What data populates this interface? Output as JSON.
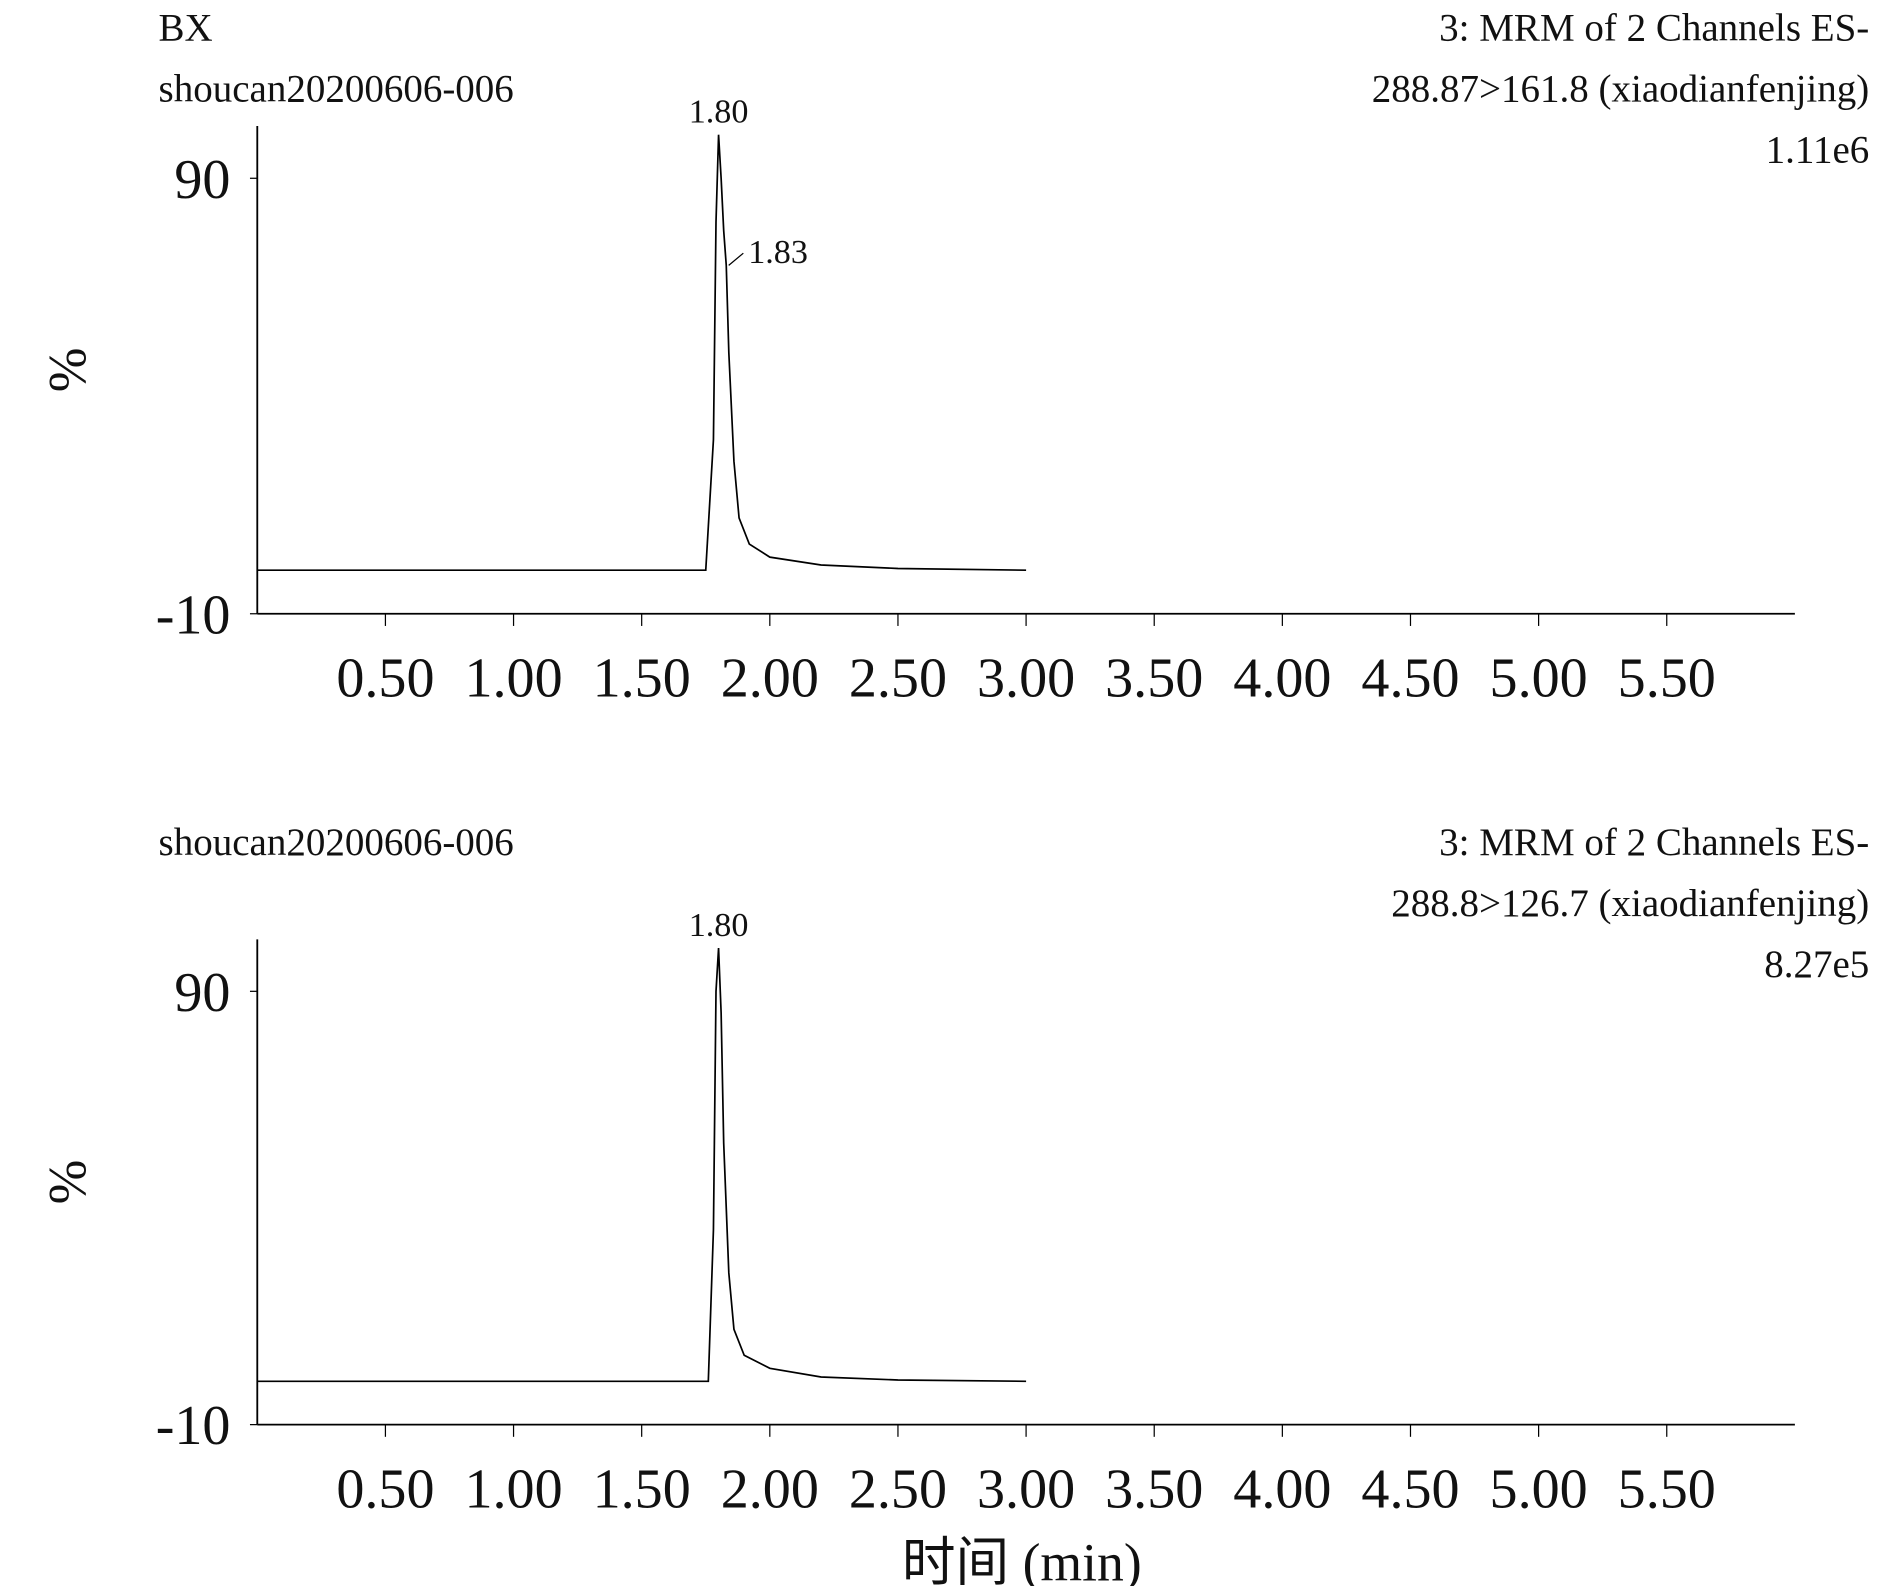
{
  "chart_data": [
    {
      "type": "line",
      "title": "BX",
      "sample": "shoucan20200606-006",
      "header": [
        "3: MRM of 2 Channels ES-",
        "288.87>161.8 (xiaodianfenjing)",
        "1.11e6"
      ],
      "y_label": "%",
      "color": "#000000",
      "x": [
        0,
        1.75,
        1.78,
        1.79,
        1.8,
        1.81,
        1.82,
        1.83,
        1.84,
        1.86,
        1.88,
        1.92,
        2.0,
        2.2,
        2.5,
        3.0
      ],
      "values": [
        0,
        0,
        30,
        80,
        100,
        90,
        78,
        70,
        50,
        25,
        12,
        6,
        3,
        1.2,
        0.4,
        0
      ],
      "xlim": [
        0,
        6.0
      ],
      "ylim": [
        -10,
        102
      ],
      "xticks": [
        {
          "value": 0.5,
          "label": "0.50"
        },
        {
          "value": 1.0,
          "label": "1.00"
        },
        {
          "value": 1.5,
          "label": "1.50"
        },
        {
          "value": 2.0,
          "label": "2.00"
        },
        {
          "value": 2.5,
          "label": "2.50"
        },
        {
          "value": 3.0,
          "label": "3.00"
        },
        {
          "value": 3.5,
          "label": "3.50"
        },
        {
          "value": 4.0,
          "label": "4.00"
        },
        {
          "value": 4.5,
          "label": "4.50"
        },
        {
          "value": 5.0,
          "label": "5.00"
        },
        {
          "value": 5.5,
          "label": "5.50"
        }
      ],
      "yticks": [
        -10,
        90
      ],
      "annotations": [
        {
          "x": 1.8,
          "y": 100,
          "label": "1.80"
        },
        {
          "x": 1.83,
          "y": 70,
          "label": "1.83"
        }
      ]
    },
    {
      "type": "line",
      "sample": "shoucan20200606-006",
      "header": [
        "3: MRM of 2 Channels ES-",
        "288.8>126.7 (xiaodianfenjing)",
        "8.27e5"
      ],
      "y_label": "%",
      "x_label": "时间 (min)",
      "color": "#000000",
      "x": [
        0,
        1.76,
        1.78,
        1.79,
        1.8,
        1.81,
        1.82,
        1.84,
        1.86,
        1.9,
        2.0,
        2.2,
        2.5,
        3.0
      ],
      "values": [
        0,
        0,
        35,
        90,
        100,
        85,
        55,
        25,
        12,
        6,
        3,
        1,
        0.3,
        0
      ],
      "xlim": [
        0,
        6.0
      ],
      "ylim": [
        -10,
        102
      ],
      "xticks": [
        {
          "value": 0.5,
          "label": "0.50"
        },
        {
          "value": 1.0,
          "label": "1.00"
        },
        {
          "value": 1.5,
          "label": "1.50"
        },
        {
          "value": 2.0,
          "label": "2.00"
        },
        {
          "value": 2.5,
          "label": "2.50"
        },
        {
          "value": 3.0,
          "label": "3.00"
        },
        {
          "value": 3.5,
          "label": "3.50"
        },
        {
          "value": 4.0,
          "label": "4.00"
        },
        {
          "value": 4.5,
          "label": "4.50"
        },
        {
          "value": 5.0,
          "label": "5.00"
        },
        {
          "value": 5.5,
          "label": "5.50"
        }
      ],
      "yticks": [
        -10,
        90
      ],
      "annotations": [
        {
          "x": 1.8,
          "y": 100,
          "label": "1.80"
        }
      ]
    }
  ]
}
